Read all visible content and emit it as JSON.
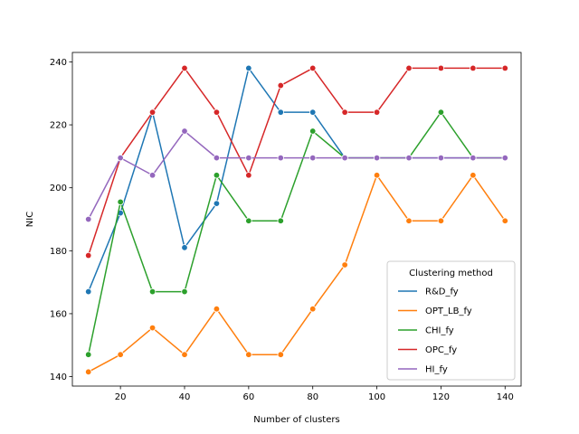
{
  "chart_data": {
    "type": "line",
    "title": "",
    "xlabel": "Number of clusters",
    "ylabel": "NIC",
    "x": [
      10,
      20,
      30,
      40,
      50,
      60,
      70,
      80,
      90,
      100,
      110,
      120,
      130,
      140
    ],
    "xlim": [
      5,
      145
    ],
    "ylim": [
      137,
      243
    ],
    "xticks": [
      20,
      40,
      60,
      80,
      100,
      120,
      140
    ],
    "yticks": [
      140,
      160,
      180,
      200,
      220,
      240
    ],
    "grid": false,
    "marker": "circle",
    "legend": {
      "title": "Clustering method",
      "placement": "lower-right"
    },
    "series": [
      {
        "name": "R&D_fy",
        "color": "#1f77b4",
        "values": [
          167,
          192,
          224,
          181,
          195,
          238,
          224,
          224,
          209.5,
          209.5,
          209.5,
          209.5,
          209.5,
          209.5
        ]
      },
      {
        "name": "OPT_LB_fy",
        "color": "#ff7f0e",
        "values": [
          141.5,
          147,
          155.5,
          147,
          161.5,
          147,
          147,
          161.5,
          175.5,
          204,
          189.5,
          189.5,
          204,
          189.5
        ]
      },
      {
        "name": "CHI_fy",
        "color": "#2ca02c",
        "values": [
          147,
          195.5,
          167,
          167,
          204,
          189.5,
          189.5,
          218,
          209.5,
          209.5,
          209.5,
          224,
          209.5,
          209.5
        ]
      },
      {
        "name": "OPC_fy",
        "color": "#d62728",
        "values": [
          178.5,
          209.5,
          224,
          238,
          224,
          204,
          232.5,
          238,
          224,
          224,
          238,
          238,
          238,
          238
        ]
      },
      {
        "name": "HI_fy",
        "color": "#9467bd",
        "values": [
          190,
          209.5,
          204,
          218,
          209.5,
          209.5,
          209.5,
          209.5,
          209.5,
          209.5,
          209.5,
          209.5,
          209.5,
          209.5
        ]
      }
    ]
  }
}
